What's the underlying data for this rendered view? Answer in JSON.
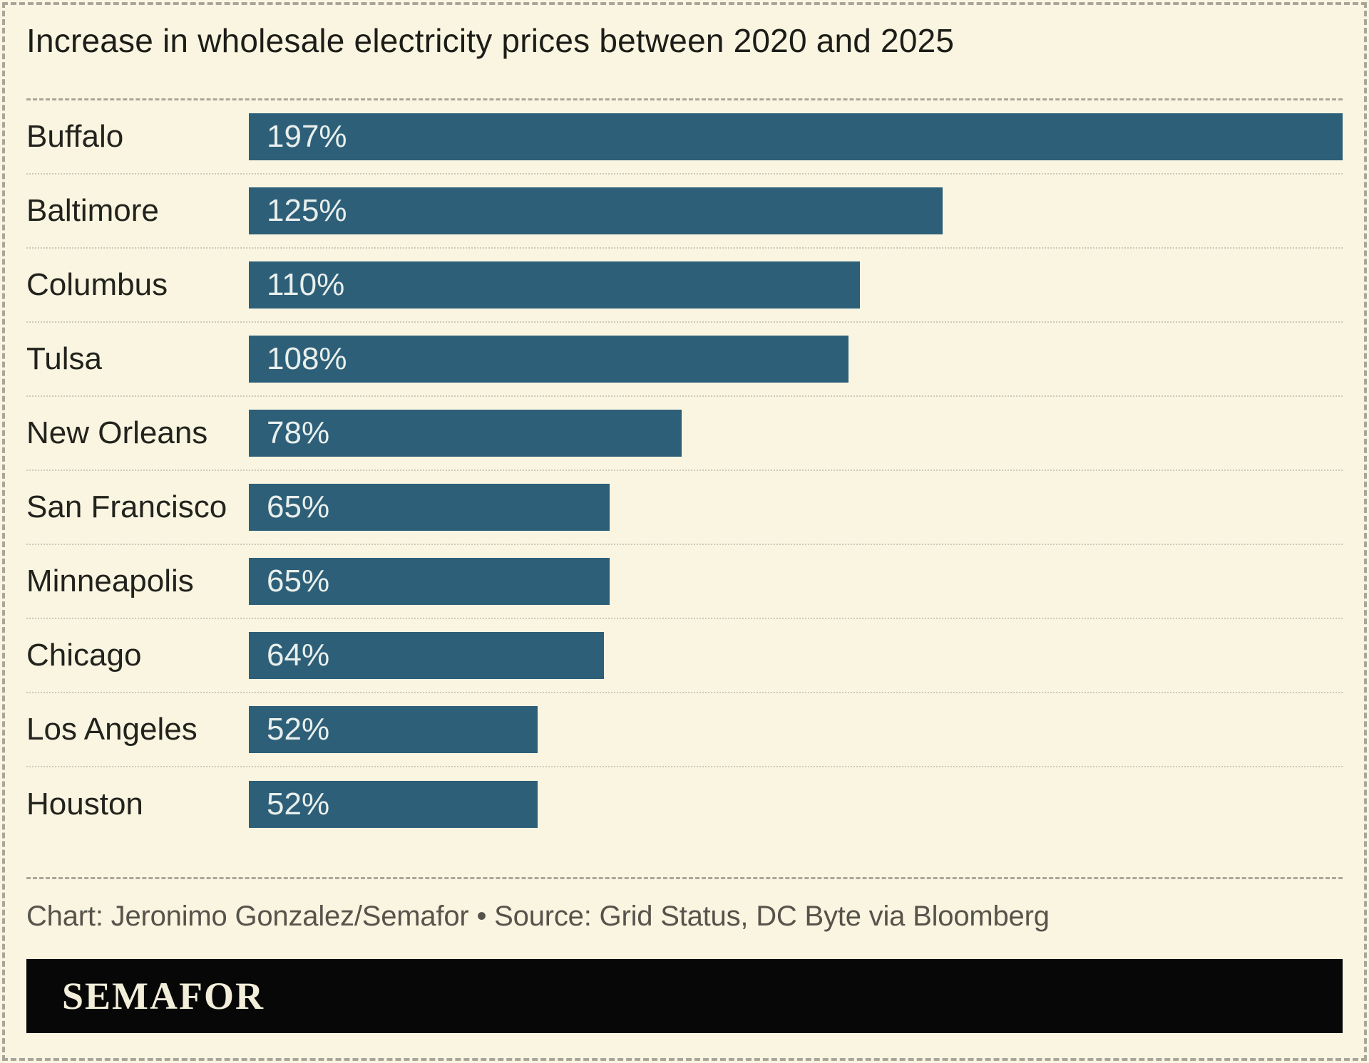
{
  "header": {
    "title": "Increase in wholesale electricity prices between 2020 and 2025"
  },
  "chart_data": {
    "type": "bar",
    "orientation": "horizontal",
    "title": "Increase in wholesale electricity prices between 2020 and 2025",
    "categories": [
      "Buffalo",
      "Baltimore",
      "Columbus",
      "Tulsa",
      "New Orleans",
      "San Francisco",
      "Minneapolis",
      "Chicago",
      "Los Angeles",
      "Houston"
    ],
    "values": [
      197,
      125,
      110,
      108,
      78,
      65,
      65,
      64,
      52,
      52
    ],
    "value_labels": [
      "197%",
      "125%",
      "110%",
      "108%",
      "78%",
      "65%",
      "65%",
      "64%",
      "52%",
      "52%"
    ],
    "value_suffix": "%",
    "xlim": [
      0,
      197
    ],
    "grid": false,
    "legend": false,
    "data_labels_position": "inside-start",
    "bar_color": "#2e5f78",
    "value_label_color": "#e8efec"
  },
  "footer": {
    "credit": "Chart: Jeronimo Gonzalez/Semafor • Source: Grid Status, DC Byte via Bloomberg",
    "logo_text": "SEMAFOR"
  },
  "colors": {
    "background": "#f9f5e1",
    "bar": "#2e5f78",
    "value_text": "#e8efec",
    "title_text": "#1d1d18",
    "label_text": "#23231d",
    "credit_text": "#56534b",
    "border_dash": "#a9a599",
    "row_separator_dots": "#cdc9b6",
    "banner_background": "#070707",
    "logo_text": "#f3eeda"
  }
}
